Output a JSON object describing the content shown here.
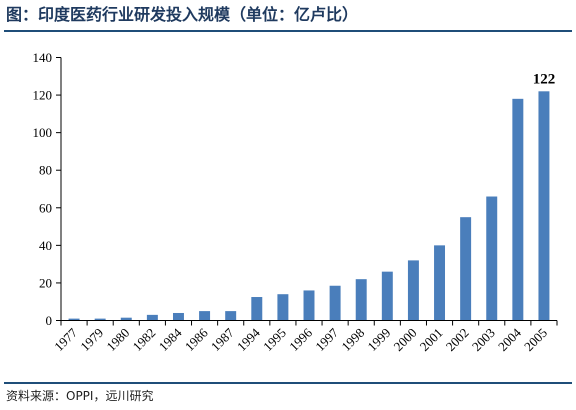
{
  "figure": {
    "title": "图：印度医药行业研发投入规模（单位：亿卢比）",
    "source": "资料来源：OPPI，远川研究"
  },
  "colors": {
    "bar": "#4a7ebb",
    "rule": "#1f4e79",
    "title": "#1f3a5f"
  },
  "chart_data": {
    "type": "bar",
    "categories": [
      "1977",
      "1979",
      "1980",
      "1982",
      "1984",
      "1986",
      "1987",
      "1994",
      "1995",
      "1996",
      "1997",
      "1998",
      "1999",
      "2000",
      "2001",
      "2002",
      "2003",
      "2004",
      "2005"
    ],
    "values": [
      1,
      1,
      1.5,
      3,
      4,
      5,
      5,
      12.5,
      14,
      16,
      18.5,
      22,
      26,
      32,
      40,
      55,
      66,
      118,
      122
    ],
    "ylim": [
      0,
      140
    ],
    "yticks": [
      0,
      20,
      40,
      60,
      80,
      100,
      120,
      140
    ],
    "annotations": [
      {
        "category": "2005",
        "text": "122"
      }
    ],
    "grid": false,
    "legend": "none"
  }
}
